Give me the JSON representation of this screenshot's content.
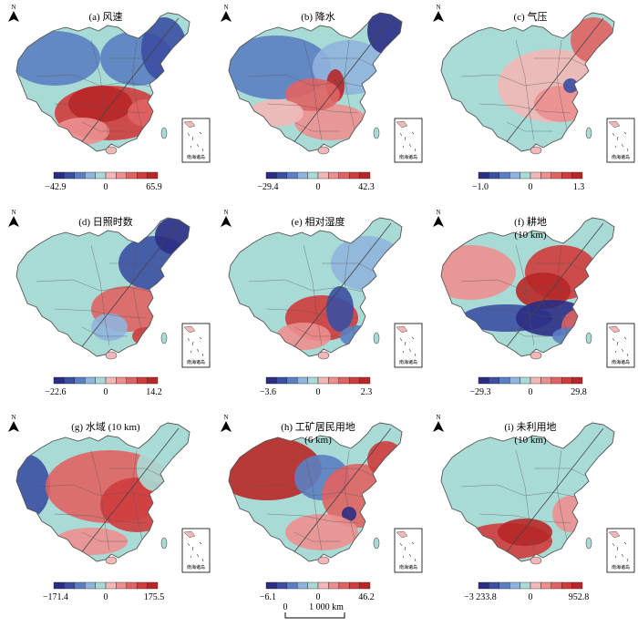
{
  "north_label": "N",
  "inset_label": "南海诸岛",
  "scalebar": {
    "label_start": "0",
    "label_end": "1 000 km"
  },
  "panels": [
    {
      "title": [
        "(a) 风速"
      ],
      "min": "−42.9",
      "mid": "0",
      "max": "65.9"
    },
    {
      "title": [
        "(b) 降水"
      ],
      "min": "−29.4",
      "mid": "0",
      "max": "42.3"
    },
    {
      "title": [
        "(c) 气压"
      ],
      "min": "−1.0",
      "mid": "0",
      "max": "1.3"
    },
    {
      "title": [
        "(d) 日照时数"
      ],
      "min": "−22.6",
      "mid": "0",
      "max": "14.2"
    },
    {
      "title": [
        "(e) 相对湿度"
      ],
      "min": "−3.6",
      "mid": "0",
      "max": "2.3"
    },
    {
      "title": [
        "(f) 耕地",
        "(10 km)"
      ],
      "min": "−29.3",
      "mid": "0",
      "max": "29.8"
    },
    {
      "title": [
        "(g) 水域 (10 km)"
      ],
      "min": "−171.4",
      "mid": "0",
      "max": "175.5"
    },
    {
      "title": [
        "(h) 工矿居民用地",
        "(6 km)"
      ],
      "min": "−6.1",
      "mid": "0",
      "max": "46.2"
    },
    {
      "title": [
        "(i) 未利用地",
        "(10 km)"
      ],
      "min": "−3 233.8",
      "mid": "0",
      "max": "952.8"
    }
  ],
  "colors": {
    "ramp": [
      "#2b2d84",
      "#3b4fa3",
      "#5b7fc2",
      "#8fb4dd",
      "#a8dbd6",
      "#f2b7b7",
      "#ec8f8f",
      "#e06363",
      "#cf3c3c",
      "#b82727"
    ],
    "border": "#555555"
  }
}
